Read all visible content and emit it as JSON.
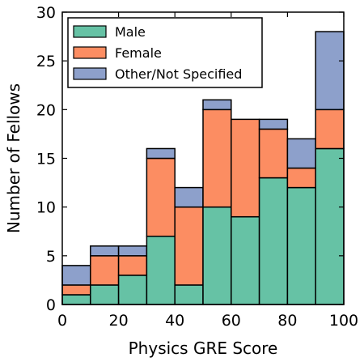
{
  "chart_data": {
    "type": "bar",
    "stacked": true,
    "histogram": true,
    "bin_edges": [
      0,
      10,
      20,
      30,
      40,
      50,
      60,
      70,
      80,
      90,
      100
    ],
    "series": [
      {
        "name": "Male",
        "color": "#66c2a5",
        "values": [
          1,
          2,
          3,
          7,
          2,
          10,
          9,
          13,
          12,
          16
        ]
      },
      {
        "name": "Female",
        "color": "#fc8d62",
        "values": [
          1,
          3,
          2,
          8,
          8,
          10,
          10,
          5,
          2,
          4
        ]
      },
      {
        "name": "Other/Not Specified",
        "color": "#8da0cb",
        "values": [
          2,
          1,
          1,
          1,
          2,
          1,
          0,
          1,
          3,
          8
        ]
      }
    ],
    "xlabel": "Physics GRE Score",
    "ylabel": "Number of Fellows",
    "xlim": [
      0,
      100
    ],
    "ylim": [
      0,
      30
    ],
    "xticks": [
      "0",
      "20",
      "40",
      "60",
      "80",
      "100"
    ],
    "yticks": [
      "0",
      "5",
      "10",
      "15",
      "20",
      "25",
      "30"
    ],
    "grid": false,
    "legend_position": "top-left"
  }
}
